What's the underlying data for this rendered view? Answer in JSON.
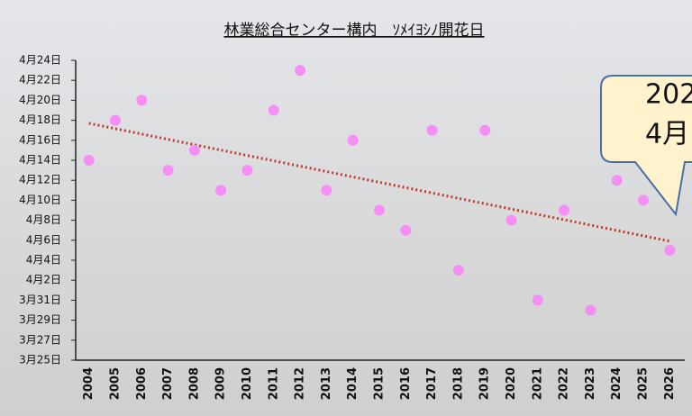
{
  "chart_data": {
    "type": "scatter",
    "title": "林業総合センター構内　ｿﾒｲﾖｼﾉ開花日",
    "categories": [
      "2004",
      "2005",
      "2006",
      "2007",
      "2008",
      "2009",
      "2010",
      "2011",
      "2012",
      "2013",
      "2014",
      "2015",
      "2016",
      "2017",
      "2018",
      "2019",
      "2020",
      "2021",
      "2022",
      "2023",
      "2024",
      "2025",
      "2026"
    ],
    "values": [
      104,
      108,
      110,
      103,
      105,
      101,
      103,
      109,
      113,
      101,
      106,
      99,
      97,
      107,
      93,
      107,
      98,
      90,
      99,
      89,
      102,
      100,
      95
    ],
    "color": "#f58ef5",
    "trendline": {
      "values": [
        107.7,
        95.9
      ],
      "color": "#c0392b"
    },
    "ylim": [
      84,
      114
    ],
    "yticks": [
      {
        "value": 84,
        "label": "3月25日"
      },
      {
        "value": 86,
        "label": "3月27日"
      },
      {
        "value": 88,
        "label": "3月29日"
      },
      {
        "value": 90,
        "label": "3月31日"
      },
      {
        "value": 92,
        "label": "4月2日"
      },
      {
        "value": 94,
        "label": "4月4日"
      },
      {
        "value": 96,
        "label": "4月6日"
      },
      {
        "value": 98,
        "label": "4月8日"
      },
      {
        "value": 100,
        "label": "4月10日"
      },
      {
        "value": 102,
        "label": "4月12日"
      },
      {
        "value": 104,
        "label": "4月14日"
      },
      {
        "value": 106,
        "label": "4月16日"
      },
      {
        "value": 108,
        "label": "4月18日"
      },
      {
        "value": 110,
        "label": "4月20日"
      },
      {
        "value": 112,
        "label": "4月22日"
      },
      {
        "value": 114,
        "label": "4月24日"
      }
    ],
    "annotation": {
      "lines": [
        "202",
        "4月"
      ]
    }
  }
}
